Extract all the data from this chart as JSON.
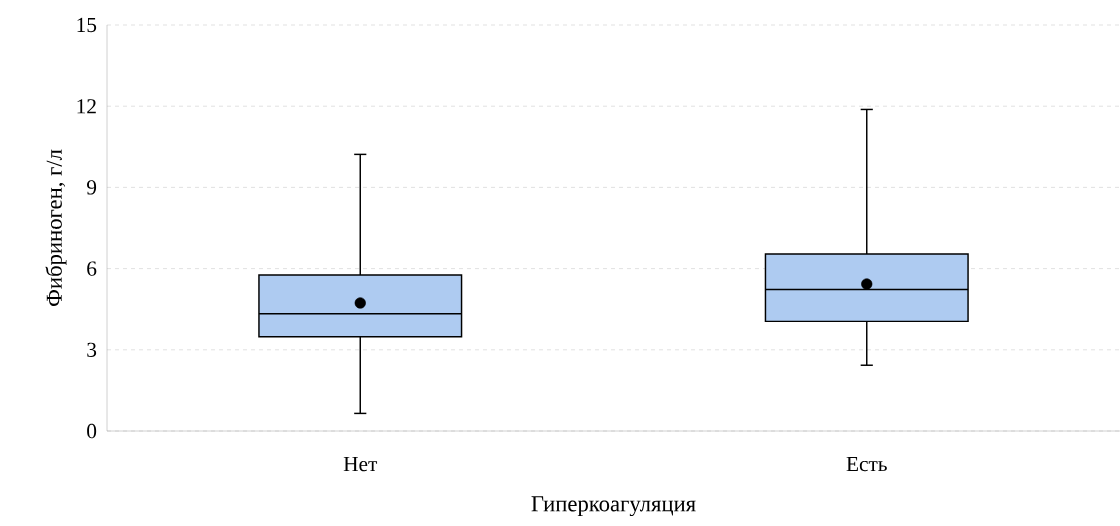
{
  "chart_data": {
    "type": "box",
    "xlabel": "Гиперкоагуляция",
    "ylabel": "Фибриноген, г/л",
    "categories": [
      "Нет",
      "Есть"
    ],
    "color": "#aecbf1",
    "boxes": [
      {
        "low": 0.65,
        "q1": 3.48,
        "median": 4.33,
        "q3": 5.76,
        "high": 10.22,
        "mean": 4.73
      },
      {
        "low": 2.43,
        "q1": 4.05,
        "median": 5.23,
        "q3": 6.54,
        "high": 11.88,
        "mean": 5.43
      }
    ],
    "ylim": [
      0,
      15
    ],
    "yticks": [
      0,
      3,
      6,
      9,
      12,
      15
    ],
    "grid": "y"
  }
}
